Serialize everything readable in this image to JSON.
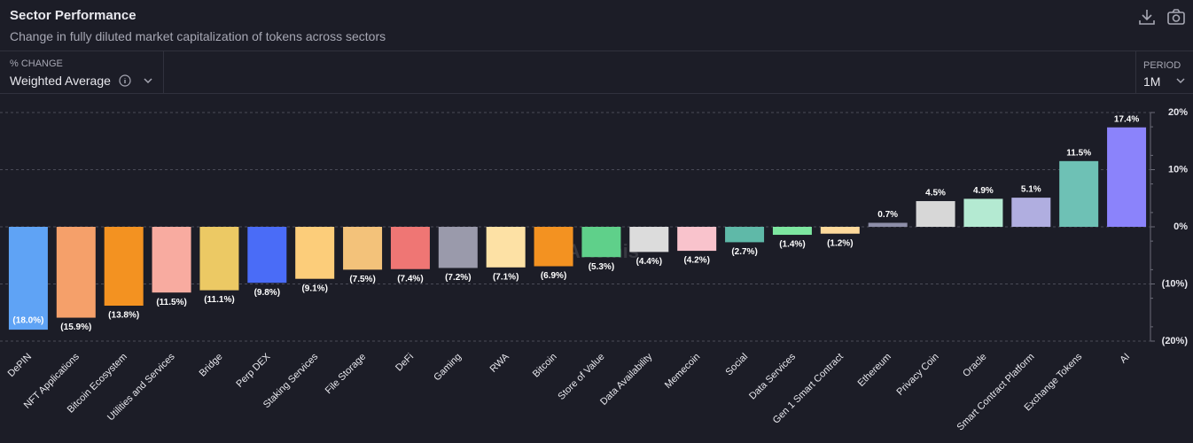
{
  "header": {
    "title": "Sector Performance",
    "subtitle": "Change in fully diluted market capitalization of tokens across sectors"
  },
  "controls": {
    "metric_label": "% CHANGE",
    "metric": "Weighted Average",
    "period_label": "PERIOD",
    "period": "1M"
  },
  "watermark": "Artemis",
  "chart_data": {
    "type": "bar",
    "categories": [
      "DePIN",
      "NFT Applications",
      "Bitcoin Ecosystem",
      "Utilities and Services",
      "Bridge",
      "Perp DEX",
      "Staking Services",
      "File Storage",
      "DeFi",
      "Gaming",
      "RWA",
      "Bitcoin",
      "Store of Value",
      "Data Availability",
      "Memecoin",
      "Social",
      "Data Services",
      "Gen 1 Smart Contract",
      "Ethereum",
      "Privacy Coin",
      "Oracle",
      "Smart Contract Platform",
      "Exchange Tokens",
      "AI"
    ],
    "values": [
      -18.0,
      -15.9,
      -13.8,
      -11.5,
      -11.1,
      -9.8,
      -9.1,
      -7.5,
      -7.4,
      -7.2,
      -7.1,
      -6.9,
      -5.3,
      -4.4,
      -4.2,
      -2.7,
      -1.4,
      -1.2,
      0.7,
      4.5,
      4.9,
      5.1,
      11.5,
      17.4
    ],
    "value_labels": [
      "(18.0%)",
      "(15.9%)",
      "(13.8%)",
      "(11.5%)",
      "(11.1%)",
      "(9.8%)",
      "(9.1%)",
      "(7.5%)",
      "(7.4%)",
      "(7.2%)",
      "(7.1%)",
      "(6.9%)",
      "(5.3%)",
      "(4.4%)",
      "(4.2%)",
      "(2.7%)",
      "(1.4%)",
      "(1.2%)",
      "0.7%",
      "4.5%",
      "4.9%",
      "5.1%",
      "11.5%",
      "17.4%"
    ],
    "colors": [
      "#5fa3f5",
      "#f5a06a",
      "#f39221",
      "#f8aba0",
      "#ecc964",
      "#4a6cf7",
      "#fccd7a",
      "#f3c27a",
      "#ef7674",
      "#9a9aab",
      "#fde1a5",
      "#f39221",
      "#5fd08a",
      "#dcdcdc",
      "#f9c3cc",
      "#5fb9a8",
      "#7de6a0",
      "#fdd99b",
      "#8d8ea8",
      "#d7d7d7",
      "#b4ead2",
      "#b0aee0",
      "#6ec1b5",
      "#8b83fb"
    ],
    "ylim": [
      -20,
      20
    ],
    "yticks": [
      {
        "value": 20,
        "label": "20%"
      },
      {
        "value": 10,
        "label": "10%"
      },
      {
        "value": 0,
        "label": "0%"
      },
      {
        "value": -10,
        "label": "(10%)"
      },
      {
        "value": -20,
        "label": "(20%)"
      }
    ],
    "grid": true
  }
}
